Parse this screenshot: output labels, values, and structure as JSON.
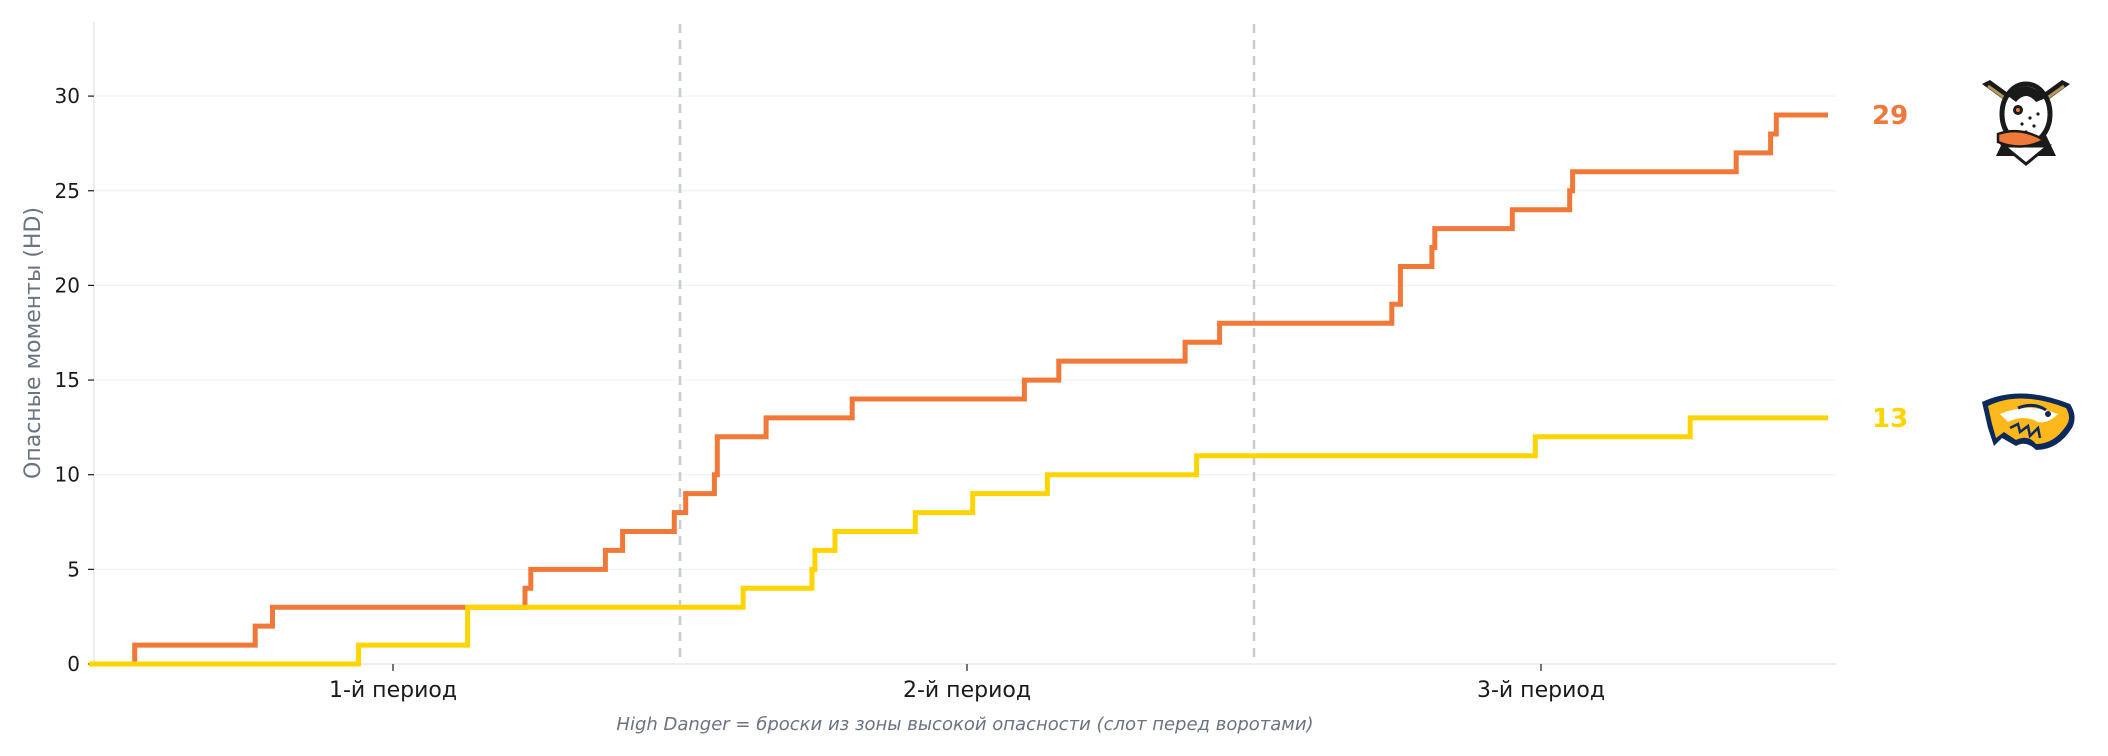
{
  "chart_data": {
    "type": "line",
    "step": true,
    "ylabel": "Опасные моменты (HD)",
    "note": "High Danger = броски из зоны высокой опасности (слот перед воротами)",
    "ylim": [
      0,
      34
    ],
    "xlim": [
      0,
      3
    ],
    "yticks": [
      0,
      5,
      10,
      15,
      20,
      25,
      30
    ],
    "period_labels": [
      "1-й период",
      "2-й период",
      "3-й период"
    ],
    "period_dividers": [
      1,
      2
    ],
    "grid": true,
    "series": [
      {
        "team": "Anaheim Ducks",
        "color": "#f07838",
        "final": "29",
        "logo": "ducks-logo",
        "points": [
          [
            0.0,
            0
          ],
          [
            0.05,
            0
          ],
          [
            0.05,
            1
          ],
          [
            0.26,
            1
          ],
          [
            0.26,
            2
          ],
          [
            0.29,
            2
          ],
          [
            0.29,
            3
          ],
          [
            0.73,
            3
          ],
          [
            0.73,
            4
          ],
          [
            0.74,
            4
          ],
          [
            0.74,
            5
          ],
          [
            0.87,
            5
          ],
          [
            0.87,
            6
          ],
          [
            0.9,
            6
          ],
          [
            0.9,
            7
          ],
          [
            0.99,
            7
          ],
          [
            0.99,
            8
          ],
          [
            1.01,
            8
          ],
          [
            1.01,
            9
          ],
          [
            1.06,
            9
          ],
          [
            1.06,
            10
          ],
          [
            1.065,
            10
          ],
          [
            1.065,
            12
          ],
          [
            1.15,
            12
          ],
          [
            1.15,
            13
          ],
          [
            1.3,
            13
          ],
          [
            1.3,
            14
          ],
          [
            1.6,
            14
          ],
          [
            1.6,
            15
          ],
          [
            1.66,
            15
          ],
          [
            1.66,
            16
          ],
          [
            1.88,
            16
          ],
          [
            1.88,
            17
          ],
          [
            1.94,
            17
          ],
          [
            1.94,
            18
          ],
          [
            2.24,
            18
          ],
          [
            2.24,
            19
          ],
          [
            2.255,
            19
          ],
          [
            2.255,
            21
          ],
          [
            2.31,
            21
          ],
          [
            2.31,
            22
          ],
          [
            2.315,
            22
          ],
          [
            2.315,
            23
          ],
          [
            2.45,
            23
          ],
          [
            2.45,
            24
          ],
          [
            2.55,
            24
          ],
          [
            2.55,
            25
          ],
          [
            2.555,
            25
          ],
          [
            2.555,
            26
          ],
          [
            2.84,
            26
          ],
          [
            2.84,
            27
          ],
          [
            2.9,
            27
          ],
          [
            2.9,
            28
          ],
          [
            2.91,
            28
          ],
          [
            2.91,
            29
          ],
          [
            3.0,
            29
          ]
        ]
      },
      {
        "team": "Nashville Predators",
        "color": "#ffd400",
        "final": "13",
        "logo": "predators-logo",
        "points": [
          [
            -0.03,
            0
          ],
          [
            0.44,
            0
          ],
          [
            0.44,
            1
          ],
          [
            0.63,
            1
          ],
          [
            0.63,
            3
          ],
          [
            1.11,
            3
          ],
          [
            1.11,
            4
          ],
          [
            1.23,
            4
          ],
          [
            1.23,
            5
          ],
          [
            1.235,
            5
          ],
          [
            1.235,
            6
          ],
          [
            1.27,
            6
          ],
          [
            1.27,
            7
          ],
          [
            1.41,
            7
          ],
          [
            1.41,
            8
          ],
          [
            1.51,
            8
          ],
          [
            1.51,
            9
          ],
          [
            1.64,
            9
          ],
          [
            1.64,
            10
          ],
          [
            1.9,
            10
          ],
          [
            1.9,
            11
          ],
          [
            2.49,
            11
          ],
          [
            2.49,
            12
          ],
          [
            2.76,
            12
          ],
          [
            2.76,
            13
          ],
          [
            3.0,
            13
          ]
        ]
      }
    ]
  }
}
